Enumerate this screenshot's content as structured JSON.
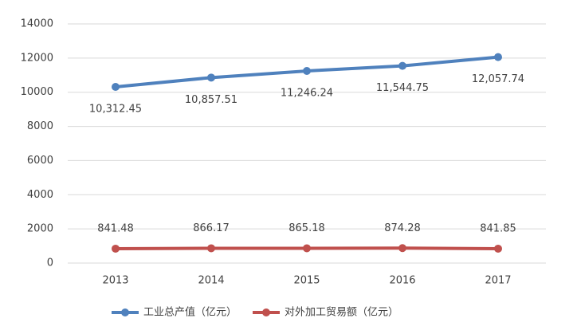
{
  "chart_data": {
    "type": "line",
    "categories": [
      "2013",
      "2014",
      "2015",
      "2016",
      "2017"
    ],
    "series": [
      {
        "name": "工业总产值（亿元）",
        "color": "#4f81bd",
        "values": [
          10312.45,
          10857.51,
          11246.24,
          11544.75,
          12057.74
        ],
        "value_labels": [
          "10,312.45",
          "10,857.51",
          "11,246.24",
          "11,544.75",
          "12,057.74"
        ]
      },
      {
        "name": "对外加工贸易额（亿元）",
        "color": "#c0504d",
        "values": [
          841.48,
          866.17,
          865.18,
          874.28,
          841.85
        ]
      }
    ],
    "ylim": [
      0,
      14000
    ],
    "yticks": [
      0,
      2000,
      4000,
      6000,
      8000,
      10000,
      12000,
      14000
    ],
    "grid": true,
    "legend": "bottom"
  }
}
